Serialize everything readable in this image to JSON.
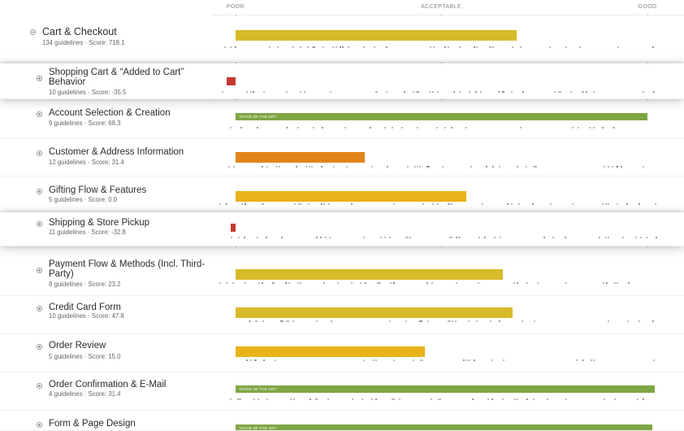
{
  "scale": {
    "labels": [
      "POOR",
      "ACCEPTABLE",
      "GOOD"
    ]
  },
  "colors": {
    "yellow": "#d8bb2a",
    "amber": "#e9b31a",
    "orange": "#e0841a",
    "red": "#c43a31",
    "green": "#7fa645"
  },
  "badge_text": "'STATE OF THE ART'",
  "rows": [
    {
      "title": "Cart & Checkout",
      "subtitle": "134 guidelines · Score: 718.1",
      "score": 718.1,
      "bar_color": "yellow",
      "badge": false,
      "highlighted": false,
      "top": true
    },
    {
      "title": "Shopping Cart & “Added to Cart” Behavior",
      "subtitle": "10 guidelines · Score: -35.5",
      "score": -35.5,
      "bar_color": "red",
      "badge": false,
      "highlighted": true
    },
    {
      "title": "Account Selection & Creation",
      "subtitle": "9 guidelines · Score: 68.3",
      "score": 68.3,
      "bar_color": "green",
      "badge": true,
      "highlighted": false
    },
    {
      "title": "Customer & Address Information",
      "subtitle": "12 guidelines · Score: 31.4",
      "score": 31.4,
      "bar_color": "orange",
      "badge": false,
      "highlighted": false
    },
    {
      "title": "Gifting Flow & Features",
      "subtitle": "5 guidelines · Score: 0.0",
      "score": 0.0,
      "bar_color": "amber",
      "badge": false,
      "highlighted": false
    },
    {
      "title": "Shipping & Store Pickup",
      "subtitle": "11 guidelines · Score: -32.8",
      "score": -32.8,
      "bar_color": "red",
      "badge": false,
      "highlighted": true
    },
    {
      "title": "Payment Flow & Methods (Incl. Third-Party)",
      "subtitle": "8 guidelines · Score: 23.2",
      "score": 23.2,
      "bar_color": "yellow",
      "badge": false,
      "highlighted": false
    },
    {
      "title": "Credit Card Form",
      "subtitle": "10 guidelines · Score: 47.8",
      "score": 47.8,
      "bar_color": "yellow",
      "badge": false,
      "highlighted": false
    },
    {
      "title": "Order Review",
      "subtitle": "5 guidelines · Score: 15.0",
      "score": 15.0,
      "bar_color": "amber",
      "badge": false,
      "highlighted": false
    },
    {
      "title": "Order Confirmation & E-Mail",
      "subtitle": "4 guidelines · Score: 31.4",
      "score": 31.4,
      "bar_color": "green",
      "badge": true,
      "highlighted": false
    },
    {
      "title": "Form & Page Design",
      "subtitle": "",
      "score": null,
      "bar_color": "green",
      "badge": true,
      "highlighted": false
    }
  ]
}
